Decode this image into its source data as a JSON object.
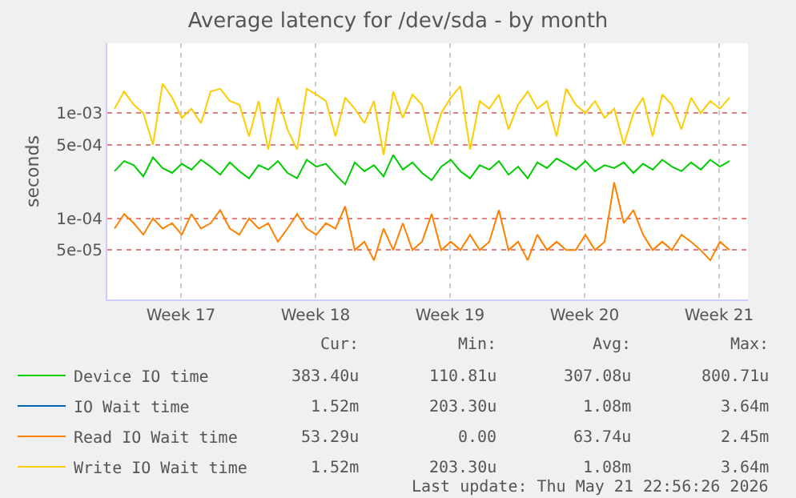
{
  "chart_data": {
    "type": "line",
    "title": "Average latency for /dev/sda - by month",
    "ylabel": "seconds",
    "log": "y",
    "grid": true,
    "legend": "bottom left",
    "marker": "none",
    "line_style": "solid",
    "ylim": [
      1.7e-05,
      0.0046
    ],
    "yticks": [
      {
        "value": 0.001,
        "label": "1e-03"
      },
      {
        "value": 0.0005,
        "label": "5e-04"
      },
      {
        "value": 0.0001,
        "label": "1e-04"
      },
      {
        "value": 5e-05,
        "label": "5e-05"
      }
    ],
    "xlim": [
      "2026-04-18T15:00",
      "2026-05-21T23:00"
    ],
    "xticks": [
      {
        "value": "2026-04-22T11:00",
        "label": "Week 17"
      },
      {
        "value": "2026-04-29T11:00",
        "label": "Week 18"
      },
      {
        "value": "2026-05-06T11:00",
        "label": "Week 19"
      },
      {
        "value": "2026-05-13T11:00",
        "label": "Week 20"
      },
      {
        "value": "2026-05-20T11:00",
        "label": "Week 21"
      }
    ],
    "x": [
      "2026-04-19T00:00",
      "2026-04-19T12:00",
      "2026-04-20T00:00",
      "2026-04-20T12:00",
      "2026-04-21T00:00",
      "2026-04-21T12:00",
      "2026-04-22T00:00",
      "2026-04-22T12:00",
      "2026-04-23T00:00",
      "2026-04-23T12:00",
      "2026-04-24T00:00",
      "2026-04-24T12:00",
      "2026-04-25T00:00",
      "2026-04-25T12:00",
      "2026-04-26T00:00",
      "2026-04-26T12:00",
      "2026-04-27T00:00",
      "2026-04-27T12:00",
      "2026-04-28T00:00",
      "2026-04-28T12:00",
      "2026-04-29T00:00",
      "2026-04-29T12:00",
      "2026-04-30T00:00",
      "2026-04-30T12:00",
      "2026-05-01T00:00",
      "2026-05-01T12:00",
      "2026-05-02T00:00",
      "2026-05-02T12:00",
      "2026-05-03T00:00",
      "2026-05-03T12:00",
      "2026-05-04T00:00",
      "2026-05-04T12:00",
      "2026-05-05T00:00",
      "2026-05-05T12:00",
      "2026-05-06T00:00",
      "2026-05-06T12:00",
      "2026-05-07T00:00",
      "2026-05-07T12:00",
      "2026-05-08T00:00",
      "2026-05-08T12:00",
      "2026-05-09T00:00",
      "2026-05-09T12:00",
      "2026-05-10T00:00",
      "2026-05-10T12:00",
      "2026-05-11T00:00",
      "2026-05-11T12:00",
      "2026-05-12T00:00",
      "2026-05-12T12:00",
      "2026-05-13T00:00",
      "2026-05-13T12:00",
      "2026-05-14T00:00",
      "2026-05-14T12:00",
      "2026-05-15T00:00",
      "2026-05-15T12:00",
      "2026-05-16T00:00",
      "2026-05-16T12:00",
      "2026-05-17T00:00",
      "2026-05-17T12:00",
      "2026-05-18T00:00",
      "2026-05-18T12:00",
      "2026-05-19T00:00",
      "2026-05-19T12:00",
      "2026-05-20T00:00",
      "2026-05-20T12:00",
      "2026-05-21T00:00"
    ],
    "series": [
      {
        "name": "Device IO time",
        "color": "#00cc00",
        "values": [
          0.00028,
          0.00035,
          0.00032,
          0.00025,
          0.00038,
          0.0003,
          0.00027,
          0.00033,
          0.00029,
          0.00036,
          0.00031,
          0.00026,
          0.00034,
          0.00028,
          0.00024,
          0.00032,
          0.00029,
          0.00035,
          0.00027,
          0.00024,
          0.00036,
          0.00031,
          0.00033,
          0.00026,
          0.00021,
          0.00034,
          0.00028,
          0.00032,
          0.00025,
          0.0004,
          0.00029,
          0.00034,
          0.00027,
          0.00023,
          0.00031,
          0.00036,
          0.00028,
          0.00024,
          0.00032,
          0.00029,
          0.00035,
          0.00026,
          0.00031,
          0.00024,
          0.00034,
          0.0003,
          0.00037,
          0.00033,
          0.00029,
          0.00035,
          0.00028,
          0.00032,
          0.0003,
          0.00034,
          0.00027,
          0.00033,
          0.00029,
          0.00036,
          0.00031,
          0.00028,
          0.00034,
          0.00029,
          0.00036,
          0.00031,
          0.00035
        ]
      },
      {
        "name": "IO Wait time",
        "color": "#0066b3",
        "values": [
          null,
          null,
          null,
          null,
          null,
          null,
          null,
          null,
          null,
          null,
          null,
          null,
          null,
          null,
          null,
          null,
          null,
          null,
          null,
          null,
          null,
          null,
          null,
          null,
          null,
          null,
          null,
          null,
          null,
          null,
          null,
          null,
          null,
          null,
          null,
          null,
          null,
          null,
          null,
          null,
          null,
          null,
          null,
          null,
          null,
          null,
          null,
          null,
          null,
          null,
          null,
          null,
          null,
          null,
          null,
          null,
          null,
          null,
          null,
          null,
          null,
          null,
          null,
          null,
          null
        ]
      },
      {
        "name": "Read IO Wait time",
        "color": "#ff8000",
        "values": [
          8e-05,
          0.00011,
          9e-05,
          7e-05,
          0.0001,
          8e-05,
          9e-05,
          7e-05,
          0.00011,
          8e-05,
          9e-05,
          0.00012,
          8e-05,
          7e-05,
          0.0001,
          8e-05,
          9e-05,
          6e-05,
          8e-05,
          0.00011,
          8e-05,
          7e-05,
          9e-05,
          8e-05,
          0.00013,
          5e-05,
          6e-05,
          4e-05,
          8e-05,
          5e-05,
          9e-05,
          5e-05,
          6e-05,
          0.00011,
          5e-05,
          6e-05,
          5e-05,
          7e-05,
          5e-05,
          6e-05,
          0.00012,
          5e-05,
          6e-05,
          4e-05,
          7e-05,
          5e-05,
          6e-05,
          5e-05,
          5e-05,
          7e-05,
          5e-05,
          6e-05,
          0.00022,
          9e-05,
          0.00012,
          7e-05,
          5e-05,
          6e-05,
          5e-05,
          7e-05,
          6e-05,
          5e-05,
          4e-05,
          6e-05,
          5e-05
        ]
      },
      {
        "name": "Write IO Wait time",
        "color": "#ffcc00",
        "values": [
          0.0011,
          0.0016,
          0.0012,
          0.001,
          0.0005,
          0.0019,
          0.0014,
          0.0009,
          0.0011,
          0.0008,
          0.0016,
          0.0017,
          0.0013,
          0.0012,
          0.0006,
          0.0013,
          0.00045,
          0.0014,
          0.0007,
          0.00045,
          0.0017,
          0.0015,
          0.0013,
          0.0006,
          0.0014,
          0.0011,
          0.0008,
          0.0013,
          0.0004,
          0.0016,
          0.0009,
          0.0015,
          0.0012,
          0.0005,
          0.001,
          0.0014,
          0.0018,
          0.00045,
          0.0013,
          0.0011,
          0.0015,
          0.0007,
          0.0012,
          0.0016,
          0.0011,
          0.0013,
          0.0006,
          0.0017,
          0.0012,
          0.001,
          0.0013,
          0.0009,
          0.0011,
          0.0005,
          0.001,
          0.0014,
          0.0006,
          0.0015,
          0.0012,
          0.0007,
          0.0014,
          0.001,
          0.0013,
          0.0011,
          0.0014
        ]
      }
    ],
    "annotations": [
      "Cur:",
      "Min:",
      "Avg:",
      "Max:",
      "383.40u",
      "110.81u",
      "307.08u",
      "800.71u",
      "1.52m",
      "203.30u",
      "1.08m",
      "3.64m",
      "53.29u",
      "0.00",
      "63.74u",
      "2.45m",
      "1.52m",
      "203.30u",
      "1.08m",
      "3.64m",
      "Last update: Thu May 21 22:56:26 2026"
    ]
  }
}
